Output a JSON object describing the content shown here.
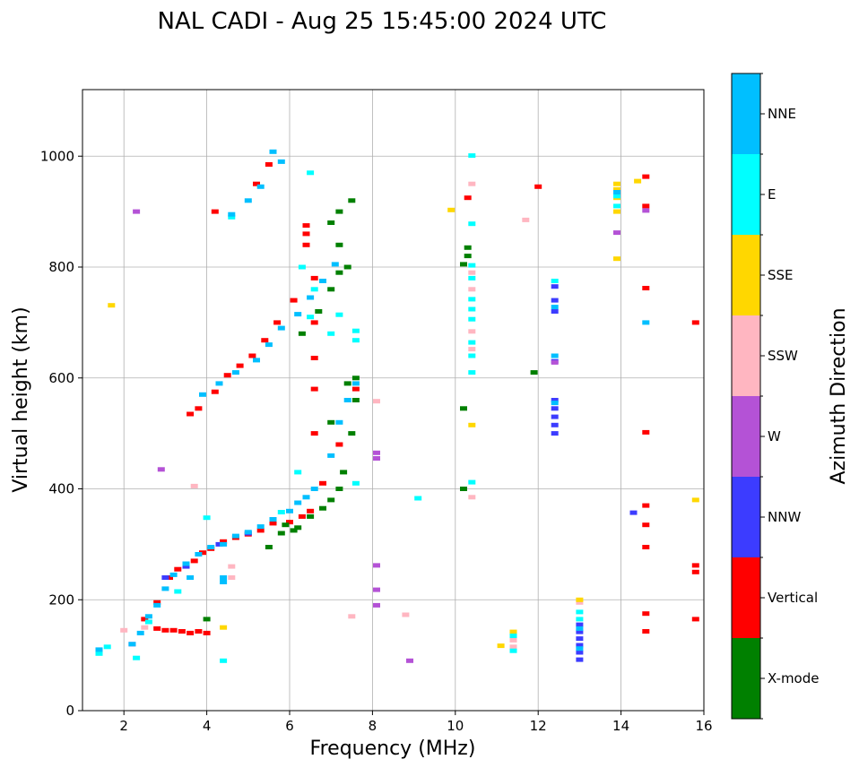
{
  "chart_data": {
    "type": "scatter",
    "title": "NAL CADI - Aug 25 15:45:00 2024 UTC",
    "xlabel": "Frequency (MHz)",
    "ylabel": "Virtual height (km)",
    "xlim": [
      1,
      16
    ],
    "ylim": [
      0,
      1120
    ],
    "xticks": [
      2,
      4,
      6,
      8,
      10,
      12,
      14,
      16
    ],
    "yticks": [
      0,
      200,
      400,
      600,
      800,
      1000
    ],
    "grid": true,
    "colorbar": {
      "title": "Azimuth Direction",
      "categories": [
        {
          "name": "X-mode",
          "color": "#008000"
        },
        {
          "name": "Vertical",
          "color": "#ff0000"
        },
        {
          "name": "NNW",
          "color": "#3c3cff"
        },
        {
          "name": "W",
          "color": "#b452d6"
        },
        {
          "name": "SSW",
          "color": "#ffb6c1"
        },
        {
          "name": "SSE",
          "color": "#ffd700"
        },
        {
          "name": "E",
          "color": "#00ffff"
        },
        {
          "name": "NNE",
          "color": "#00bfff"
        }
      ]
    },
    "series": [
      {
        "name": "Vertical",
        "points": [
          [
            2.8,
            148
          ],
          [
            3.0,
            145
          ],
          [
            3.2,
            145
          ],
          [
            3.4,
            143
          ],
          [
            3.6,
            140
          ],
          [
            3.8,
            143
          ],
          [
            3.1,
            240
          ],
          [
            3.3,
            255
          ],
          [
            3.5,
            265
          ],
          [
            3.7,
            270
          ],
          [
            3.9,
            285
          ],
          [
            4.1,
            292
          ],
          [
            4.4,
            305
          ],
          [
            4.7,
            312
          ],
          [
            5.0,
            318
          ],
          [
            5.3,
            325
          ],
          [
            5.6,
            338
          ],
          [
            6.0,
            340
          ],
          [
            6.3,
            350
          ],
          [
            6.5,
            360
          ],
          [
            3.6,
            535
          ],
          [
            3.8,
            545
          ],
          [
            4.2,
            575
          ],
          [
            4.5,
            605
          ],
          [
            4.8,
            622
          ],
          [
            5.1,
            640
          ],
          [
            5.4,
            668
          ],
          [
            5.7,
            700
          ],
          [
            6.1,
            740
          ],
          [
            6.4,
            840
          ],
          [
            6.4,
            860
          ],
          [
            6.4,
            875
          ],
          [
            6.6,
            780
          ],
          [
            6.6,
            700
          ],
          [
            6.6,
            636
          ],
          [
            6.6,
            580
          ],
          [
            6.6,
            500
          ],
          [
            6.8,
            410
          ],
          [
            7.2,
            480
          ],
          [
            7.6,
            580
          ],
          [
            4.2,
            900
          ],
          [
            5.2,
            950
          ],
          [
            5.5,
            985
          ],
          [
            10.3,
            925
          ],
          [
            12.0,
            945
          ],
          [
            14.6,
            963
          ],
          [
            14.6,
            910
          ],
          [
            14.6,
            762
          ],
          [
            14.6,
            502
          ],
          [
            14.6,
            370
          ],
          [
            14.6,
            335
          ],
          [
            14.6,
            295
          ],
          [
            14.6,
            175
          ],
          [
            14.6,
            143
          ],
          [
            15.8,
            700
          ],
          [
            15.8,
            262
          ],
          [
            15.8,
            250
          ],
          [
            15.8,
            165
          ],
          [
            4.0,
            140
          ],
          [
            2.5,
            165
          ],
          [
            2.8,
            195
          ]
        ]
      },
      {
        "name": "X-mode",
        "points": [
          [
            5.5,
            295
          ],
          [
            5.8,
            320
          ],
          [
            6.2,
            330
          ],
          [
            6.5,
            350
          ],
          [
            6.8,
            365
          ],
          [
            7.0,
            380
          ],
          [
            7.2,
            400
          ],
          [
            7.3,
            430
          ],
          [
            7.5,
            500
          ],
          [
            7.6,
            560
          ],
          [
            7.6,
            600
          ],
          [
            7.4,
            590
          ],
          [
            7.0,
            520
          ],
          [
            6.3,
            680
          ],
          [
            6.7,
            720
          ],
          [
            7.0,
            760
          ],
          [
            7.2,
            790
          ],
          [
            7.4,
            800
          ],
          [
            7.2,
            840
          ],
          [
            7.0,
            880
          ],
          [
            7.2,
            900
          ],
          [
            7.5,
            920
          ],
          [
            5.9,
            335
          ],
          [
            6.1,
            325
          ],
          [
            10.2,
            400
          ],
          [
            10.3,
            835
          ],
          [
            10.3,
            820
          ],
          [
            10.2,
            545
          ],
          [
            11.9,
            610
          ],
          [
            10.2,
            805
          ],
          [
            4.0,
            165
          ]
        ]
      },
      {
        "name": "NNW",
        "points": [
          [
            12.4,
            500
          ],
          [
            12.4,
            515
          ],
          [
            12.4,
            530
          ],
          [
            12.4,
            545
          ],
          [
            12.4,
            560
          ],
          [
            12.4,
            630
          ],
          [
            12.4,
            720
          ],
          [
            12.4,
            740
          ],
          [
            12.4,
            765
          ],
          [
            13.0,
            92
          ],
          [
            13.0,
            105
          ],
          [
            13.0,
            118
          ],
          [
            13.0,
            130
          ],
          [
            13.0,
            142
          ],
          [
            13.0,
            155
          ],
          [
            14.3,
            357
          ],
          [
            3.0,
            240
          ],
          [
            3.5,
            260
          ],
          [
            4.3,
            300
          ],
          [
            5.0,
            320
          ]
        ]
      },
      {
        "name": "W",
        "points": [
          [
            8.1,
            455
          ],
          [
            8.1,
            465
          ],
          [
            8.1,
            262
          ],
          [
            8.1,
            218
          ],
          [
            8.1,
            190
          ],
          [
            8.9,
            90
          ],
          [
            12.4,
            628
          ],
          [
            13.9,
            862
          ],
          [
            14.6,
            902
          ],
          [
            2.3,
            900
          ],
          [
            2.9,
            435
          ],
          [
            2.2,
            120
          ]
        ]
      },
      {
        "name": "SSW",
        "points": [
          [
            8.1,
            558
          ],
          [
            8.8,
            173
          ],
          [
            10.4,
            790
          ],
          [
            10.4,
            760
          ],
          [
            10.4,
            684
          ],
          [
            10.4,
            652
          ],
          [
            10.4,
            385
          ],
          [
            10.4,
            950
          ],
          [
            11.7,
            885
          ],
          [
            11.4,
            127
          ],
          [
            11.4,
            115
          ],
          [
            13.0,
            195
          ],
          [
            7.5,
            170
          ],
          [
            3.7,
            405
          ],
          [
            4.6,
            240
          ],
          [
            4.6,
            260
          ],
          [
            2.0,
            145
          ],
          [
            2.5,
            150
          ]
        ]
      },
      {
        "name": "SSE",
        "points": [
          [
            13.9,
            950
          ],
          [
            13.9,
            940
          ],
          [
            13.9,
            925
          ],
          [
            13.9,
            900
          ],
          [
            13.9,
            815
          ],
          [
            14.4,
            955
          ],
          [
            15.8,
            380
          ],
          [
            13.0,
            200
          ],
          [
            11.4,
            142
          ],
          [
            11.1,
            117
          ],
          [
            10.4,
            515
          ],
          [
            9.9,
            903
          ],
          [
            1.7,
            731
          ],
          [
            4.4,
            150
          ]
        ]
      },
      {
        "name": "E",
        "points": [
          [
            13.9,
            928
          ],
          [
            13.9,
            910
          ],
          [
            13.0,
            178
          ],
          [
            13.0,
            165
          ],
          [
            11.4,
            135
          ],
          [
            11.4,
            108
          ],
          [
            10.4,
            1001
          ],
          [
            10.4,
            878
          ],
          [
            10.4,
            803
          ],
          [
            10.4,
            780
          ],
          [
            10.4,
            742
          ],
          [
            10.4,
            724
          ],
          [
            10.4,
            706
          ],
          [
            10.4,
            664
          ],
          [
            10.4,
            640
          ],
          [
            10.4,
            610
          ],
          [
            10.4,
            412
          ],
          [
            9.1,
            383
          ],
          [
            7.2,
            714
          ],
          [
            7.0,
            680
          ],
          [
            7.6,
            685
          ],
          [
            7.6,
            668
          ],
          [
            6.5,
            970
          ],
          [
            4.6,
            890
          ],
          [
            6.3,
            800
          ],
          [
            6.6,
            760
          ],
          [
            6.5,
            710
          ],
          [
            6.2,
            430
          ],
          [
            5.8,
            358
          ],
          [
            4.0,
            348
          ],
          [
            4.4,
            90
          ],
          [
            2.6,
            160
          ],
          [
            3.3,
            215
          ],
          [
            1.4,
            103
          ],
          [
            1.6,
            115
          ],
          [
            2.3,
            95
          ],
          [
            12.4,
            775
          ],
          [
            7.6,
            410
          ]
        ]
      },
      {
        "name": "NNE",
        "points": [
          [
            1.4,
            110
          ],
          [
            2.2,
            120
          ],
          [
            2.4,
            140
          ],
          [
            2.6,
            170
          ],
          [
            2.8,
            190
          ],
          [
            3.0,
            220
          ],
          [
            3.2,
            245
          ],
          [
            3.5,
            265
          ],
          [
            3.8,
            282
          ],
          [
            4.1,
            295
          ],
          [
            4.4,
            300
          ],
          [
            4.7,
            315
          ],
          [
            5.0,
            322
          ],
          [
            5.3,
            332
          ],
          [
            5.6,
            345
          ],
          [
            6.0,
            360
          ],
          [
            6.2,
            375
          ],
          [
            6.4,
            385
          ],
          [
            6.6,
            400
          ],
          [
            7.0,
            460
          ],
          [
            7.2,
            520
          ],
          [
            7.4,
            560
          ],
          [
            7.6,
            590
          ],
          [
            3.6,
            240
          ],
          [
            4.4,
            240
          ],
          [
            4.4,
            232
          ],
          [
            3.9,
            570
          ],
          [
            4.3,
            590
          ],
          [
            4.7,
            610
          ],
          [
            5.2,
            632
          ],
          [
            5.5,
            660
          ],
          [
            5.8,
            690
          ],
          [
            6.2,
            715
          ],
          [
            6.5,
            745
          ],
          [
            6.8,
            775
          ],
          [
            7.1,
            805
          ],
          [
            4.6,
            895
          ],
          [
            5.0,
            920
          ],
          [
            5.3,
            945
          ],
          [
            5.6,
            1008
          ],
          [
            5.8,
            990
          ],
          [
            13.9,
            935
          ],
          [
            14.6,
            700
          ],
          [
            12.4,
            728
          ],
          [
            12.4,
            640
          ],
          [
            12.4,
            555
          ],
          [
            13.0,
            148
          ],
          [
            13.0,
            112
          ]
        ]
      }
    ]
  }
}
